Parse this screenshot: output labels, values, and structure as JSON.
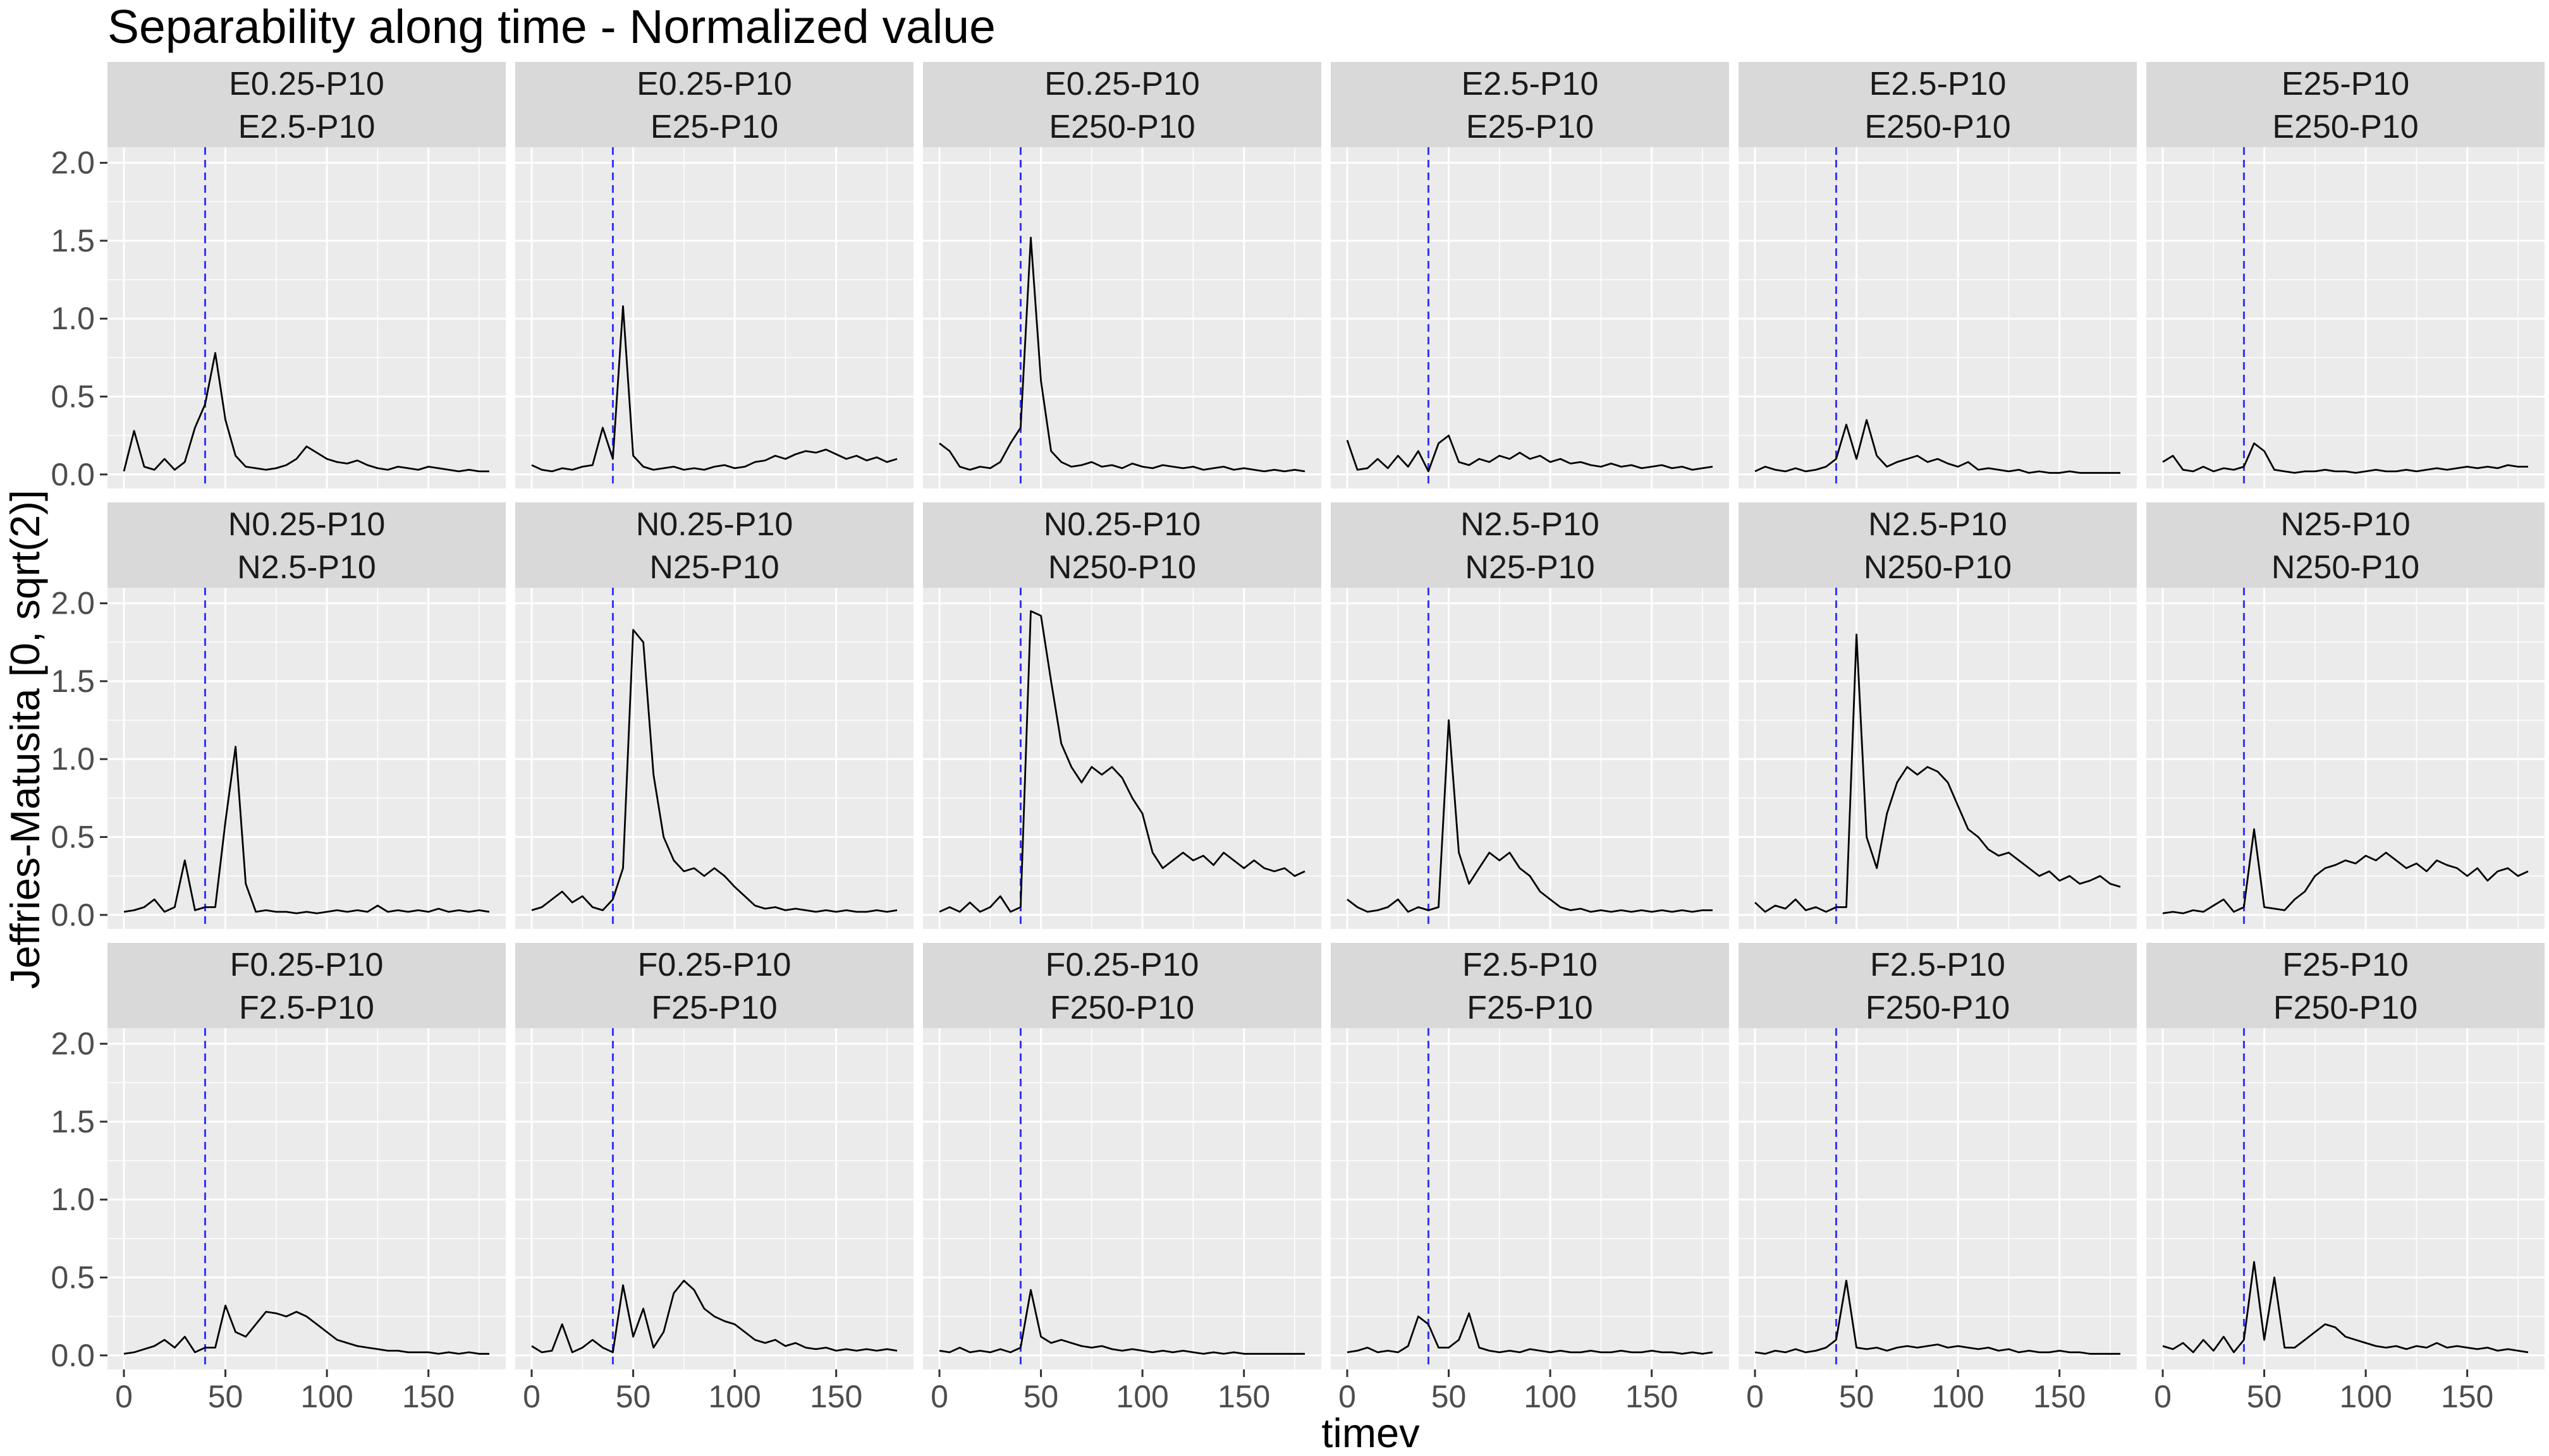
{
  "chart_data": {
    "type": "line",
    "title": "Separability along time - Normalized value",
    "xlabel": "timev",
    "ylabel": "Jeffries-Matusita [0, sqrt(2)]",
    "xlim": [
      0,
      180
    ],
    "ylim": [
      0,
      2.0
    ],
    "x_ticks": [
      0,
      50,
      100,
      150
    ],
    "x_tick_labels": [
      "0",
      "50",
      "100",
      "150"
    ],
    "y_ticks": [
      0,
      0.5,
      1.0,
      1.5,
      2.0
    ],
    "y_tick_labels": [
      "0.0",
      "0.5",
      "1.0",
      "1.5",
      "2.0"
    ],
    "vline_x": 40,
    "colors": {
      "line": "#000000",
      "vline": "#3333ff",
      "panel_bg": "#ebebeb",
      "strip_bg": "#d9d9d9",
      "grid": "#ffffff"
    },
    "grid": true,
    "x": [
      0,
      5,
      10,
      15,
      20,
      25,
      30,
      35,
      40,
      45,
      50,
      55,
      60,
      65,
      70,
      75,
      80,
      85,
      90,
      95,
      100,
      105,
      110,
      115,
      120,
      125,
      130,
      135,
      140,
      145,
      150,
      155,
      160,
      165,
      170,
      175,
      180
    ],
    "panels": [
      {
        "strip": [
          "E0.25-P10",
          "E2.5-P10"
        ],
        "values": [
          0.02,
          0.28,
          0.05,
          0.03,
          0.1,
          0.03,
          0.08,
          0.3,
          0.45,
          0.78,
          0.35,
          0.12,
          0.05,
          0.04,
          0.03,
          0.04,
          0.06,
          0.1,
          0.18,
          0.14,
          0.1,
          0.08,
          0.07,
          0.09,
          0.06,
          0.04,
          0.03,
          0.05,
          0.04,
          0.03,
          0.05,
          0.04,
          0.03,
          0.02,
          0.03,
          0.02,
          0.02
        ]
      },
      {
        "strip": [
          "E0.25-P10",
          "E25-P10"
        ],
        "values": [
          0.06,
          0.03,
          0.02,
          0.04,
          0.03,
          0.05,
          0.06,
          0.3,
          0.1,
          1.08,
          0.12,
          0.05,
          0.03,
          0.04,
          0.05,
          0.03,
          0.04,
          0.03,
          0.05,
          0.06,
          0.04,
          0.05,
          0.08,
          0.09,
          0.12,
          0.1,
          0.13,
          0.15,
          0.14,
          0.16,
          0.13,
          0.1,
          0.12,
          0.09,
          0.11,
          0.08,
          0.1
        ]
      },
      {
        "strip": [
          "E0.25-P10",
          "E250-P10"
        ],
        "values": [
          0.2,
          0.15,
          0.05,
          0.03,
          0.05,
          0.04,
          0.08,
          0.2,
          0.3,
          1.52,
          0.6,
          0.15,
          0.08,
          0.05,
          0.06,
          0.08,
          0.05,
          0.06,
          0.04,
          0.07,
          0.05,
          0.04,
          0.06,
          0.05,
          0.04,
          0.05,
          0.03,
          0.04,
          0.05,
          0.03,
          0.04,
          0.03,
          0.02,
          0.03,
          0.02,
          0.03,
          0.02
        ]
      },
      {
        "strip": [
          "E2.5-P10",
          "E25-P10"
        ],
        "values": [
          0.22,
          0.03,
          0.04,
          0.1,
          0.04,
          0.12,
          0.05,
          0.15,
          0.02,
          0.2,
          0.25,
          0.08,
          0.06,
          0.1,
          0.08,
          0.12,
          0.1,
          0.14,
          0.1,
          0.12,
          0.08,
          0.1,
          0.07,
          0.08,
          0.06,
          0.05,
          0.07,
          0.05,
          0.06,
          0.04,
          0.05,
          0.06,
          0.04,
          0.05,
          0.03,
          0.04,
          0.05
        ]
      },
      {
        "strip": [
          "E2.5-P10",
          "E250-P10"
        ],
        "values": [
          0.02,
          0.05,
          0.03,
          0.02,
          0.04,
          0.02,
          0.03,
          0.05,
          0.1,
          0.32,
          0.1,
          0.35,
          0.12,
          0.05,
          0.08,
          0.1,
          0.12,
          0.08,
          0.1,
          0.07,
          0.05,
          0.08,
          0.03,
          0.04,
          0.03,
          0.02,
          0.03,
          0.01,
          0.02,
          0.01,
          0.01,
          0.02,
          0.01,
          0.01,
          0.01,
          0.01,
          0.01
        ]
      },
      {
        "strip": [
          "E25-P10",
          "E250-P10"
        ],
        "values": [
          0.08,
          0.12,
          0.03,
          0.02,
          0.05,
          0.02,
          0.04,
          0.03,
          0.05,
          0.2,
          0.15,
          0.03,
          0.02,
          0.01,
          0.02,
          0.02,
          0.03,
          0.02,
          0.02,
          0.01,
          0.02,
          0.03,
          0.02,
          0.02,
          0.03,
          0.02,
          0.03,
          0.04,
          0.03,
          0.04,
          0.05,
          0.04,
          0.05,
          0.04,
          0.06,
          0.05,
          0.05
        ]
      },
      {
        "strip": [
          "N0.25-P10",
          "N2.5-P10"
        ],
        "values": [
          0.02,
          0.03,
          0.05,
          0.1,
          0.02,
          0.05,
          0.35,
          0.03,
          0.05,
          0.05,
          0.6,
          1.08,
          0.2,
          0.02,
          0.03,
          0.02,
          0.02,
          0.01,
          0.02,
          0.01,
          0.02,
          0.03,
          0.02,
          0.03,
          0.02,
          0.06,
          0.02,
          0.03,
          0.02,
          0.03,
          0.02,
          0.04,
          0.02,
          0.03,
          0.02,
          0.03,
          0.02
        ]
      },
      {
        "strip": [
          "N0.25-P10",
          "N25-P10"
        ],
        "values": [
          0.03,
          0.05,
          0.1,
          0.15,
          0.08,
          0.12,
          0.05,
          0.03,
          0.1,
          0.3,
          1.83,
          1.75,
          0.9,
          0.5,
          0.35,
          0.28,
          0.3,
          0.25,
          0.3,
          0.25,
          0.18,
          0.12,
          0.06,
          0.04,
          0.05,
          0.03,
          0.04,
          0.03,
          0.02,
          0.03,
          0.02,
          0.03,
          0.02,
          0.02,
          0.03,
          0.02,
          0.03
        ]
      },
      {
        "strip": [
          "N0.25-P10",
          "N250-P10"
        ],
        "values": [
          0.02,
          0.05,
          0.02,
          0.08,
          0.02,
          0.05,
          0.12,
          0.02,
          0.05,
          1.95,
          1.92,
          1.5,
          1.1,
          0.95,
          0.85,
          0.95,
          0.9,
          0.95,
          0.88,
          0.75,
          0.65,
          0.4,
          0.3,
          0.35,
          0.4,
          0.35,
          0.38,
          0.32,
          0.4,
          0.35,
          0.3,
          0.35,
          0.3,
          0.28,
          0.3,
          0.25,
          0.28
        ]
      },
      {
        "strip": [
          "N2.5-P10",
          "N25-P10"
        ],
        "values": [
          0.1,
          0.05,
          0.02,
          0.03,
          0.05,
          0.1,
          0.02,
          0.05,
          0.03,
          0.05,
          1.25,
          0.4,
          0.2,
          0.3,
          0.4,
          0.35,
          0.4,
          0.3,
          0.25,
          0.15,
          0.1,
          0.05,
          0.03,
          0.04,
          0.02,
          0.03,
          0.02,
          0.03,
          0.02,
          0.03,
          0.02,
          0.03,
          0.02,
          0.03,
          0.02,
          0.03,
          0.03
        ]
      },
      {
        "strip": [
          "N2.5-P10",
          "N250-P10"
        ],
        "values": [
          0.08,
          0.02,
          0.06,
          0.04,
          0.1,
          0.03,
          0.05,
          0.02,
          0.05,
          0.05,
          1.8,
          0.5,
          0.3,
          0.65,
          0.85,
          0.95,
          0.9,
          0.95,
          0.92,
          0.85,
          0.7,
          0.55,
          0.5,
          0.42,
          0.38,
          0.4,
          0.35,
          0.3,
          0.25,
          0.28,
          0.22,
          0.25,
          0.2,
          0.22,
          0.25,
          0.2,
          0.18
        ]
      },
      {
        "strip": [
          "N25-P10",
          "N250-P10"
        ],
        "values": [
          0.01,
          0.02,
          0.01,
          0.03,
          0.02,
          0.06,
          0.1,
          0.02,
          0.05,
          0.55,
          0.05,
          0.04,
          0.03,
          0.1,
          0.15,
          0.25,
          0.3,
          0.32,
          0.35,
          0.33,
          0.38,
          0.35,
          0.4,
          0.35,
          0.3,
          0.33,
          0.28,
          0.35,
          0.32,
          0.3,
          0.25,
          0.3,
          0.22,
          0.28,
          0.3,
          0.25,
          0.28
        ]
      },
      {
        "strip": [
          "F0.25-P10",
          "F2.5-P10"
        ],
        "values": [
          0.01,
          0.02,
          0.04,
          0.06,
          0.1,
          0.05,
          0.12,
          0.02,
          0.05,
          0.05,
          0.32,
          0.15,
          0.12,
          0.2,
          0.28,
          0.27,
          0.25,
          0.28,
          0.25,
          0.2,
          0.15,
          0.1,
          0.08,
          0.06,
          0.05,
          0.04,
          0.03,
          0.03,
          0.02,
          0.02,
          0.02,
          0.01,
          0.02,
          0.01,
          0.02,
          0.01,
          0.01
        ]
      },
      {
        "strip": [
          "F0.25-P10",
          "F25-P10"
        ],
        "values": [
          0.06,
          0.02,
          0.03,
          0.2,
          0.02,
          0.05,
          0.1,
          0.05,
          0.02,
          0.45,
          0.12,
          0.3,
          0.05,
          0.15,
          0.4,
          0.48,
          0.42,
          0.3,
          0.25,
          0.22,
          0.2,
          0.15,
          0.1,
          0.08,
          0.1,
          0.06,
          0.08,
          0.05,
          0.04,
          0.05,
          0.03,
          0.04,
          0.03,
          0.04,
          0.03,
          0.04,
          0.03
        ]
      },
      {
        "strip": [
          "F0.25-P10",
          "F250-P10"
        ],
        "values": [
          0.03,
          0.02,
          0.05,
          0.02,
          0.03,
          0.02,
          0.04,
          0.02,
          0.05,
          0.42,
          0.12,
          0.08,
          0.1,
          0.08,
          0.06,
          0.05,
          0.06,
          0.04,
          0.03,
          0.04,
          0.03,
          0.02,
          0.03,
          0.02,
          0.03,
          0.02,
          0.01,
          0.02,
          0.01,
          0.02,
          0.01,
          0.01,
          0.01,
          0.01,
          0.01,
          0.01,
          0.01
        ]
      },
      {
        "strip": [
          "F2.5-P10",
          "F25-P10"
        ],
        "values": [
          0.02,
          0.03,
          0.05,
          0.02,
          0.03,
          0.02,
          0.06,
          0.25,
          0.2,
          0.05,
          0.05,
          0.1,
          0.27,
          0.05,
          0.03,
          0.02,
          0.03,
          0.02,
          0.04,
          0.03,
          0.02,
          0.03,
          0.02,
          0.02,
          0.03,
          0.02,
          0.02,
          0.03,
          0.02,
          0.02,
          0.03,
          0.02,
          0.02,
          0.01,
          0.02,
          0.01,
          0.02
        ]
      },
      {
        "strip": [
          "F2.5-P10",
          "F250-P10"
        ],
        "values": [
          0.02,
          0.01,
          0.03,
          0.02,
          0.04,
          0.02,
          0.03,
          0.05,
          0.1,
          0.48,
          0.05,
          0.04,
          0.05,
          0.03,
          0.05,
          0.06,
          0.05,
          0.06,
          0.07,
          0.05,
          0.06,
          0.05,
          0.04,
          0.05,
          0.03,
          0.04,
          0.02,
          0.03,
          0.02,
          0.02,
          0.03,
          0.02,
          0.02,
          0.01,
          0.01,
          0.01,
          0.01
        ]
      },
      {
        "strip": [
          "F25-P10",
          "F250-P10"
        ],
        "values": [
          0.06,
          0.04,
          0.08,
          0.02,
          0.1,
          0.03,
          0.12,
          0.02,
          0.1,
          0.6,
          0.1,
          0.5,
          0.05,
          0.05,
          0.1,
          0.15,
          0.2,
          0.18,
          0.12,
          0.1,
          0.08,
          0.06,
          0.05,
          0.06,
          0.04,
          0.06,
          0.05,
          0.08,
          0.05,
          0.06,
          0.05,
          0.04,
          0.05,
          0.03,
          0.04,
          0.03,
          0.02
        ]
      }
    ]
  }
}
